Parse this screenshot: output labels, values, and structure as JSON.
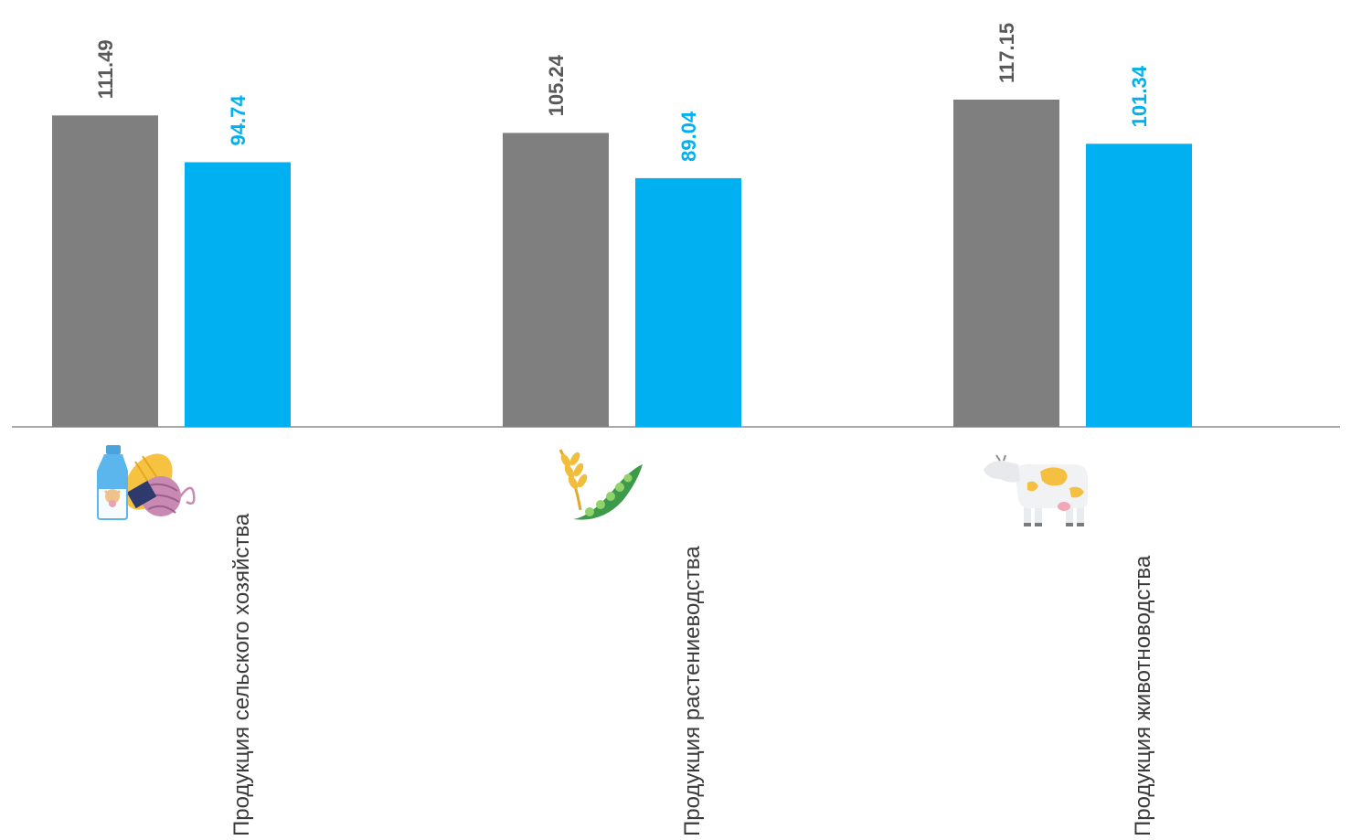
{
  "chart_data": {
    "type": "bar",
    "categories": [
      "Продукция сельского хозяйства",
      "Продукция растениеводства",
      "Продукция животноводства"
    ],
    "series": [
      {
        "values": [
          111.49,
          105.24,
          117.15
        ],
        "color": "#7f7f7f"
      },
      {
        "values": [
          94.74,
          89.04,
          101.34
        ],
        "color": "#00b0f0"
      }
    ],
    "value_labels": [
      [
        "111.49",
        "105.24",
        "117.15"
      ],
      [
        "94.74",
        "89.04",
        "101.34"
      ]
    ],
    "ylim": [
      0,
      137
    ],
    "grid": false,
    "legend": "none",
    "category_icons": [
      "milk-grain-yarn-icon",
      "wheat-pea-icon",
      "cow-icon"
    ]
  }
}
